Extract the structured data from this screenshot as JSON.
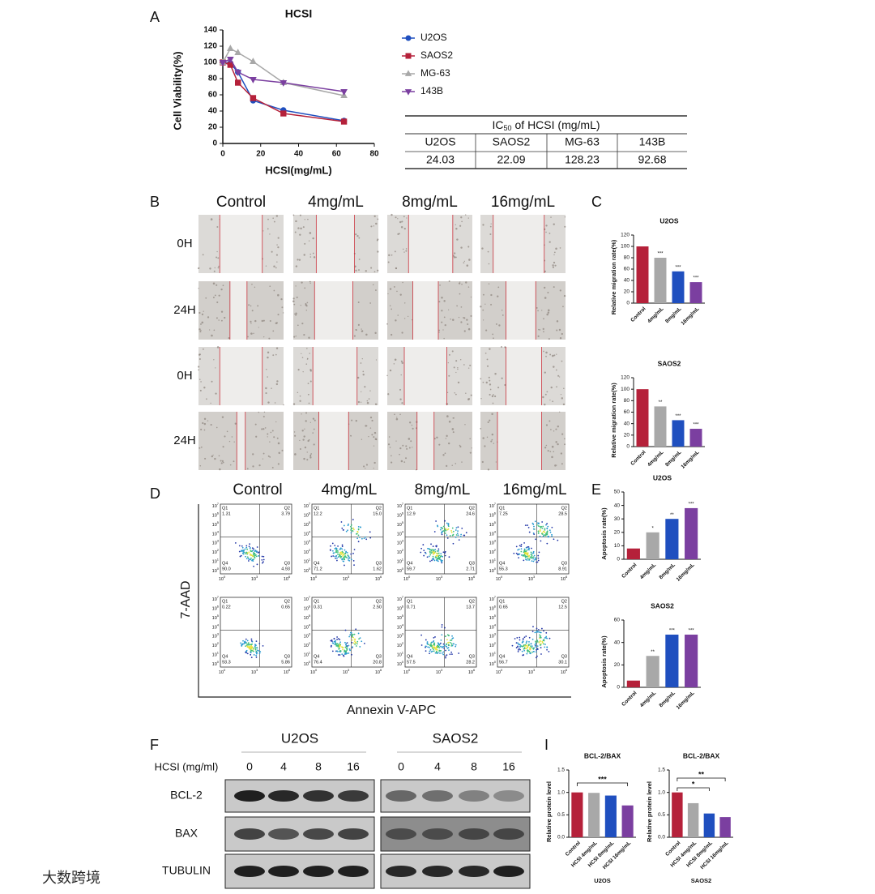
{
  "panel_letters": [
    "A",
    "B",
    "C",
    "D",
    "E",
    "F",
    "I"
  ],
  "chart_data": [
    {
      "type": "line",
      "title": "HCSI",
      "x_label": "HCSI(mg/mL)",
      "y_label": "Cell Viability(%)",
      "x": [
        0,
        4,
        8,
        16,
        32,
        64
      ],
      "xlim": [
        0,
        80
      ],
      "xticks": [
        0,
        20,
        40,
        60,
        80
      ],
      "ylim": [
        0,
        140
      ],
      "yticks": [
        0,
        20,
        40,
        60,
        80,
        100,
        120,
        140
      ],
      "series": [
        {
          "name": "U2OS",
          "color": "#1f4fbf",
          "marker": "circle",
          "values": [
            100,
            99,
            88,
            53,
            41,
            28
          ]
        },
        {
          "name": "SAOS2",
          "color": "#b5213a",
          "marker": "square",
          "values": [
            100,
            97,
            75,
            56,
            37,
            27
          ]
        },
        {
          "name": "MG-63",
          "color": "#a8a8a8",
          "marker": "triangle",
          "values": [
            100,
            117,
            112,
            101,
            75,
            59
          ]
        },
        {
          "name": "143B",
          "color": "#7b3fa0",
          "marker": "triangle-down",
          "values": [
            100,
            104,
            88,
            79,
            75,
            64
          ]
        }
      ]
    },
    {
      "type": "bar",
      "title": "U2OS",
      "y_label": "Relative migration rate(%)",
      "categories": [
        "Control",
        "4mg/mL",
        "8mg/mL",
        "16mg/mL"
      ],
      "values": [
        100,
        80,
        56,
        37
      ],
      "colors": [
        "#b5213a",
        "#a8a8a8",
        "#1f4fbf",
        "#7b3fa0"
      ],
      "significance": [
        null,
        "***",
        "***",
        "***"
      ],
      "ylim": [
        0,
        120
      ],
      "yticks": [
        0,
        20,
        40,
        60,
        80,
        100,
        120
      ]
    },
    {
      "type": "bar",
      "title": "SAOS2",
      "y_label": "Relative migration rate(%)",
      "categories": [
        "Control",
        "4mg/mL",
        "8mg/mL",
        "16mg/mL"
      ],
      "values": [
        100,
        70,
        46,
        31
      ],
      "colors": [
        "#b5213a",
        "#a8a8a8",
        "#1f4fbf",
        "#7b3fa0"
      ],
      "significance": [
        null,
        "**",
        "***",
        "***"
      ],
      "ylim": [
        0,
        120
      ],
      "yticks": [
        0,
        20,
        40,
        60,
        80,
        100,
        120
      ]
    },
    {
      "type": "bar",
      "title": "U2OS",
      "y_label": "Apoptosis rate(%)",
      "categories": [
        "Control",
        "4mg/mL",
        "8mg/mL",
        "16mg/mL"
      ],
      "values": [
        8,
        20,
        30,
        38
      ],
      "colors": [
        "#b5213a",
        "#a8a8a8",
        "#1f4fbf",
        "#7b3fa0"
      ],
      "significance": [
        null,
        "*",
        "**",
        "***"
      ],
      "ylim": [
        0,
        50
      ],
      "yticks": [
        0,
        10,
        20,
        30,
        40,
        50
      ]
    },
    {
      "type": "bar",
      "title": "SAOS2",
      "y_label": "Apoptosis rate(%)",
      "categories": [
        "Control",
        "4mg/mL",
        "8mg/mL",
        "16mg/mL"
      ],
      "values": [
        6,
        28,
        47,
        47
      ],
      "colors": [
        "#b5213a",
        "#a8a8a8",
        "#1f4fbf",
        "#7b3fa0"
      ],
      "significance": [
        null,
        "**",
        "***",
        "***"
      ],
      "ylim": [
        0,
        60
      ],
      "yticks": [
        0,
        20,
        40,
        60
      ]
    },
    {
      "type": "bar",
      "title": "BCL-2/BAX",
      "y_label": "Relative protein level",
      "x_label": "U2OS",
      "categories": [
        "Control",
        "HCSI 4mg/mL",
        "HCSI 8mg/mL",
        "HCSI 16mg/mL"
      ],
      "values": [
        1.0,
        0.99,
        0.93,
        0.71
      ],
      "colors": [
        "#b5213a",
        "#a8a8a8",
        "#1f4fbf",
        "#7b3fa0"
      ],
      "brackets": [
        {
          "from": 0,
          "to": 3,
          "label": "***"
        }
      ],
      "ylim": [
        0,
        1.5
      ],
      "yticks": [
        {
          "value": 0,
          "label": "0.0"
        },
        0.5,
        {
          "value": 1,
          "label": "1.0"
        },
        1.5
      ]
    },
    {
      "type": "bar",
      "title": "BCL-2/BAX",
      "y_label": "Relative protein level",
      "x_label": "SAOS2",
      "categories": [
        "Control",
        "HCSI 4mg/mL",
        "HCSI 8mg/mL",
        "HCSI 16mg/mL"
      ],
      "values": [
        1.0,
        0.76,
        0.53,
        0.45
      ],
      "colors": [
        "#b5213a",
        "#a8a8a8",
        "#1f4fbf",
        "#7b3fa0"
      ],
      "brackets": [
        {
          "from": 0,
          "to": 2,
          "label": "*"
        },
        {
          "from": 0,
          "to": 3,
          "label": "**"
        }
      ],
      "ylim": [
        0,
        1.5
      ],
      "yticks": [
        {
          "value": 0,
          "label": "0.0"
        },
        0.5,
        {
          "value": 1,
          "label": "1.0"
        },
        1.5
      ]
    }
  ],
  "ic50_table": {
    "title_prefix": "IC",
    "title_subscript": "50",
    "title_suffix": "of HCSI (mg/mL)",
    "columns": [
      "U2OS",
      "SAOS2",
      "MG-63",
      "143B"
    ],
    "values": [
      "24.03",
      "22.09",
      "128.23",
      "92.68"
    ]
  },
  "wound_healing": {
    "columns": [
      "Control",
      "4mg/mL",
      "8mg/mL",
      "16mg/mL"
    ],
    "row_labels": [
      "0H",
      "24H",
      "0H",
      "24H"
    ]
  },
  "flow_cytometry": {
    "columns": [
      "Control",
      "4mg/mL",
      "8mg/mL",
      "16mg/mL"
    ],
    "x_label": "Annexin V-APC",
    "y_label": "7-AAD",
    "quadrant_names": [
      "Q1",
      "Q2",
      "Q3",
      "Q4"
    ],
    "tick_base": "10",
    "x_tick_exponents": [
      "0",
      "3",
      "6"
    ],
    "y_tick_exponents": [
      "0",
      "1",
      "2",
      "3",
      "4",
      "5",
      "6",
      "7"
    ],
    "rows": [
      [
        [
          "1.31",
          "3.79",
          "4.93",
          "90.0"
        ],
        [
          "12.2",
          "15.0",
          "1.62",
          "71.2"
        ],
        [
          "12.9",
          "24.6",
          "2.71",
          "59.7"
        ],
        [
          "7.25",
          "28.5",
          "8.91",
          "55.3"
        ]
      ],
      [
        [
          "0.22",
          "0.65",
          "5.86",
          "93.3"
        ],
        [
          "0.31",
          "2.50",
          "20.8",
          "76.4"
        ],
        [
          "0.71",
          "13.7",
          "28.2",
          "57.5"
        ],
        [
          "0.65",
          "12.5",
          "30.1",
          "56.7"
        ]
      ]
    ]
  },
  "western_blot": {
    "cell_lines": [
      "U2OS",
      "SAOS2"
    ],
    "dose_label": "HCSI (mg/ml)",
    "doses": [
      "0",
      "4",
      "8",
      "16"
    ],
    "proteins": [
      "BCL-2",
      "BAX",
      "TUBULIN"
    ]
  },
  "watermark": "大数跨境"
}
